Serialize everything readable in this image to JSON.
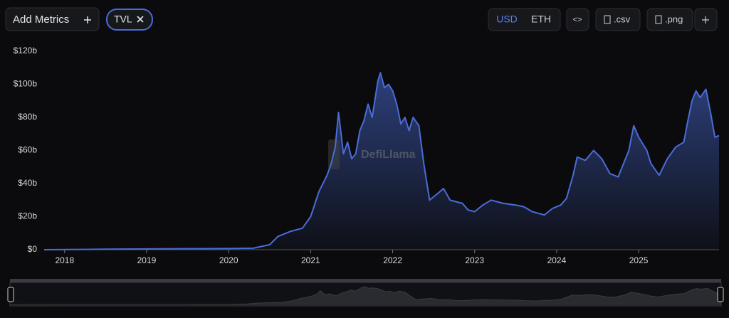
{
  "toolbar": {
    "add_metrics": "Add Metrics",
    "usd": "USD",
    "eth": "ETH",
    "embed": "<>",
    "csv": ".csv",
    "png": ".png"
  },
  "watermark": "DefiLlama",
  "chart_data": {
    "type": "area",
    "x": [
      2017.75,
      2018.5,
      2019.5,
      2020.0,
      2020.3,
      2020.5,
      2020.6,
      2020.75,
      2020.9,
      2021.0,
      2021.1,
      2021.2,
      2021.25,
      2021.3,
      2021.34,
      2021.4,
      2021.45,
      2021.5,
      2021.55,
      2021.6,
      2021.65,
      2021.7,
      2021.75,
      2021.82,
      2021.85,
      2021.9,
      2021.95,
      2022.0,
      2022.05,
      2022.1,
      2022.15,
      2022.2,
      2022.25,
      2022.32,
      2022.38,
      2022.45,
      2022.55,
      2022.62,
      2022.7,
      2022.85,
      2022.92,
      2023.0,
      2023.1,
      2023.2,
      2023.35,
      2023.5,
      2023.6,
      2023.7,
      2023.85,
      2023.95,
      2024.05,
      2024.12,
      2024.2,
      2024.25,
      2024.35,
      2024.45,
      2024.55,
      2024.65,
      2024.75,
      2024.88,
      2024.94,
      2025.0,
      2025.1,
      2025.15,
      2025.25,
      2025.35,
      2025.45,
      2025.55,
      2025.6,
      2025.65,
      2025.7,
      2025.75,
      2025.82,
      2025.88,
      2025.93,
      2025.98
    ],
    "series": [
      {
        "name": "TVL",
        "color": "#4a6cd8",
        "values": [
          0,
          0.3,
          0.6,
          0.7,
          0.9,
          3,
          8,
          11,
          13,
          20,
          35,
          45,
          52,
          62,
          83,
          58,
          65,
          55,
          58,
          72,
          78,
          88,
          80,
          102,
          107,
          98,
          100,
          96,
          88,
          76,
          80,
          72,
          80,
          75,
          52,
          30,
          34,
          37,
          30,
          28,
          24,
          23,
          27,
          30,
          28,
          27,
          26,
          23,
          21,
          25,
          27,
          31,
          45,
          56,
          54,
          60,
          55,
          46,
          44,
          60,
          75,
          68,
          60,
          52,
          45,
          55,
          62,
          65,
          78,
          90,
          96,
          92,
          97,
          82,
          68,
          69
        ]
      }
    ],
    "xlim": [
      2017.75,
      2025.98
    ],
    "xticks": [
      2018,
      2019,
      2020,
      2021,
      2022,
      2023,
      2024,
      2025
    ],
    "ylim": [
      0,
      120
    ],
    "yticks": [
      {
        "value": 0,
        "label": "$0"
      },
      {
        "value": 20,
        "label": "$20b"
      },
      {
        "value": 40,
        "label": "$40b"
      },
      {
        "value": 60,
        "label": "$60b"
      },
      {
        "value": 80,
        "label": "$80b"
      },
      {
        "value": 100,
        "label": "$100b"
      },
      {
        "value": 120,
        "label": "$120b"
      }
    ]
  }
}
